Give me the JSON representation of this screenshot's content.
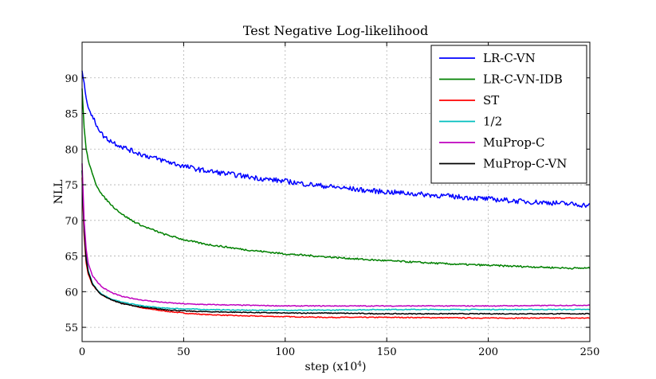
{
  "chart_data": {
    "type": "line",
    "title": "Test Negative Log-likelihood",
    "xlabel": "step (x10",
    "xlabel_exponent": "4",
    "xlabel_suffix": ")",
    "ylabel": "NLL",
    "xlim": [
      0,
      250
    ],
    "ylim": [
      53,
      95
    ],
    "xticks": [
      0,
      50,
      100,
      150,
      200,
      250
    ],
    "yticks": [
      55,
      60,
      65,
      70,
      75,
      80,
      85,
      90
    ],
    "grid": true,
    "legend_position": "top-right",
    "series": [
      {
        "name": "LR-C-VN",
        "color": "#0000ff",
        "noise": 0.35,
        "x": [
          0,
          1,
          2,
          3,
          5,
          8,
          10,
          12,
          15,
          20,
          25,
          30,
          40,
          50,
          60,
          70,
          80,
          90,
          100,
          110,
          120,
          130,
          140,
          150,
          160,
          170,
          180,
          190,
          200,
          210,
          220,
          230,
          240,
          250
        ],
        "y": [
          91,
          89,
          87.5,
          86,
          84.5,
          83,
          82,
          81.5,
          81,
          80.3,
          79.7,
          79.2,
          78.4,
          77.6,
          77,
          76.6,
          76.2,
          75.8,
          75.5,
          75.1,
          74.8,
          74.5,
          74.2,
          74,
          73.8,
          73.6,
          73.4,
          73.2,
          73,
          72.8,
          72.6,
          72.5,
          72.3,
          72.1
        ]
      },
      {
        "name": "LR-C-VN-IDB",
        "color": "#008000",
        "noise": 0.12,
        "x": [
          0,
          1,
          2,
          3,
          5,
          7,
          10,
          15,
          20,
          25,
          30,
          40,
          50,
          60,
          70,
          80,
          90,
          100,
          120,
          140,
          160,
          180,
          200,
          220,
          240,
          250
        ],
        "y": [
          88.5,
          83,
          80,
          78.5,
          76.5,
          75,
          73.5,
          72,
          70.8,
          69.9,
          69.2,
          68.1,
          67.3,
          66.7,
          66.3,
          65.9,
          65.6,
          65.3,
          64.9,
          64.5,
          64.2,
          63.9,
          63.7,
          63.5,
          63.3,
          63.3
        ]
      },
      {
        "name": "ST",
        "color": "#ff0000",
        "noise": 0.06,
        "x": [
          0,
          1,
          2,
          3,
          5,
          8,
          10,
          15,
          20,
          30,
          40,
          50,
          60,
          80,
          100,
          120,
          150,
          200,
          250
        ],
        "y": [
          76,
          68,
          64,
          62.5,
          61,
          60,
          59.5,
          58.8,
          58.4,
          57.7,
          57.3,
          57,
          56.8,
          56.6,
          56.5,
          56.4,
          56.4,
          56.3,
          56.3
        ]
      },
      {
        "name": "1/2",
        "color": "#00bfbf",
        "noise": 0.06,
        "x": [
          0,
          1,
          2,
          3,
          5,
          8,
          10,
          15,
          20,
          30,
          40,
          50,
          60,
          80,
          100,
          120,
          150,
          200,
          250
        ],
        "y": [
          77,
          69,
          65,
          63,
          61.2,
          60.1,
          59.6,
          58.9,
          58.5,
          58,
          57.7,
          57.6,
          57.5,
          57.4,
          57.4,
          57.4,
          57.5,
          57.5,
          57.5
        ]
      },
      {
        "name": "MuProp-C",
        "color": "#bf00bf",
        "noise": 0.06,
        "x": [
          0,
          1,
          2,
          3,
          5,
          8,
          10,
          15,
          20,
          30,
          40,
          50,
          60,
          80,
          100,
          120,
          150,
          200,
          250
        ],
        "y": [
          78,
          70,
          66,
          64,
          62.3,
          61.2,
          60.6,
          59.8,
          59.3,
          58.8,
          58.5,
          58.3,
          58.2,
          58.1,
          58,
          58,
          58,
          58,
          58.1
        ]
      },
      {
        "name": "MuProp-C-VN",
        "color": "#000000",
        "noise": 0.06,
        "x": [
          0,
          1,
          2,
          3,
          5,
          8,
          10,
          15,
          20,
          30,
          40,
          50,
          60,
          80,
          100,
          120,
          150,
          200,
          250
        ],
        "y": [
          77,
          68.5,
          64.5,
          62.8,
          61.1,
          60,
          59.5,
          58.8,
          58.3,
          57.8,
          57.5,
          57.3,
          57.2,
          57.1,
          57,
          57,
          56.9,
          56.9,
          56.9
        ]
      }
    ]
  }
}
